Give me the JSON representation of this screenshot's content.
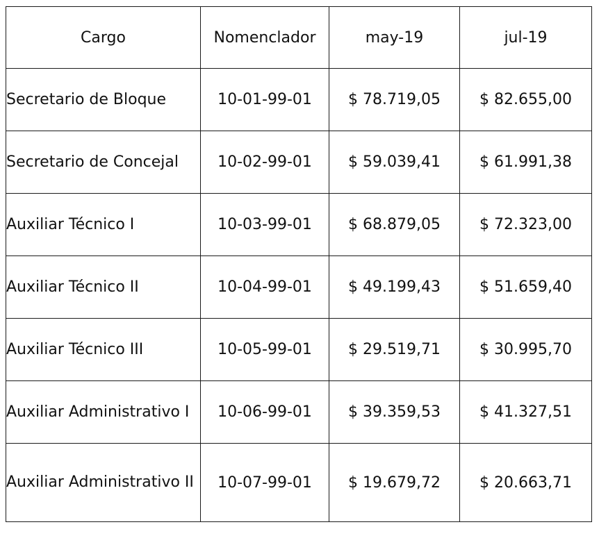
{
  "table": {
    "headers": [
      "Cargo",
      "Nomenclador",
      "may-19",
      "jul-19"
    ],
    "rows": [
      {
        "cargo": "Secretario de Bloque",
        "nomenclador": "10-01-99-01",
        "may19": "$ 78.719,05",
        "jul19": "$ 82.655,00"
      },
      {
        "cargo": "Secretario de Concejal",
        "nomenclador": "10-02-99-01",
        "may19": "$ 59.039,41",
        "jul19": "$ 61.991,38"
      },
      {
        "cargo": "Auxiliar Técnico I",
        "nomenclador": "10-03-99-01",
        "may19": "$ 68.879,05",
        "jul19": "$ 72.323,00"
      },
      {
        "cargo": "Auxiliar Técnico II",
        "nomenclador": "10-04-99-01",
        "may19": "$ 49.199,43",
        "jul19": "$ 51.659,40"
      },
      {
        "cargo": "Auxiliar Técnico III",
        "nomenclador": "10-05-99-01",
        "may19": "$ 29.519,71",
        "jul19": "$ 30.995,70"
      },
      {
        "cargo": "Auxiliar Administrativo I",
        "nomenclador": "10-06-99-01",
        "may19": "$ 39.359,53",
        "jul19": "$ 41.327,51"
      },
      {
        "cargo": "Auxiliar Administrativo II",
        "nomenclador": "10-07-99-01",
        "may19": "$ 19.679,72",
        "jul19": "$ 20.663,71"
      }
    ]
  }
}
